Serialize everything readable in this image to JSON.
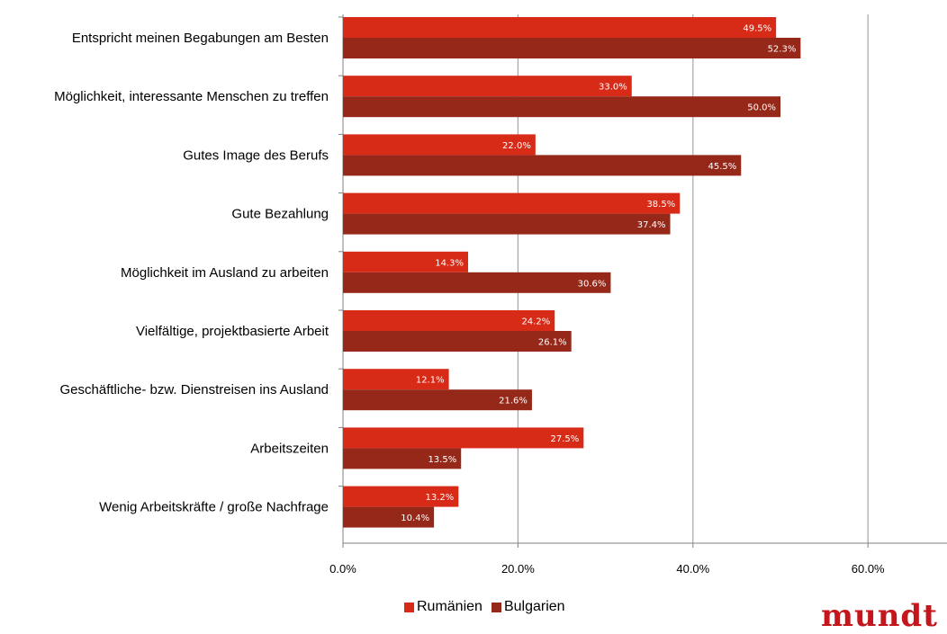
{
  "colors": {
    "series1": "#d72a17",
    "series2": "#962819",
    "grid": "#a6a6a6",
    "axis": "#808080"
  },
  "chart_data": {
    "type": "bar",
    "orientation": "horizontal",
    "categories": [
      "Entspricht meinen Begabungen am Besten",
      "Möglichkeit, interessante Menschen zu treffen",
      "Gutes Image des Berufs",
      "Gute Bezahlung",
      "Möglichkeit im Ausland zu arbeiten",
      "Vielfältige, projektbasierte Arbeit",
      "Geschäftliche- bzw. Dienstreisen ins Ausland",
      "Arbeitszeiten",
      "Wenig Arbeitskräfte / große Nachfrage"
    ],
    "series": [
      {
        "name": "Rumänien",
        "values": [
          49.5,
          33.0,
          22.0,
          38.5,
          14.3,
          24.2,
          12.1,
          27.5,
          13.2
        ],
        "labels": [
          "49.5%",
          "33.0%",
          "22.0%",
          "38.5%",
          "14.3%",
          "24.2%",
          "12.1%",
          "27.5%",
          "13.2%"
        ]
      },
      {
        "name": "Bulgarien",
        "values": [
          52.3,
          50.0,
          45.5,
          37.4,
          30.6,
          26.1,
          21.6,
          13.5,
          10.4
        ],
        "labels": [
          "52.3%",
          "50.0%",
          "45.5%",
          "37.4%",
          "30.6%",
          "26.1%",
          "21.6%",
          "13.5%",
          "10.4%"
        ]
      }
    ],
    "x_ticks": [
      0,
      20,
      40,
      60
    ],
    "x_tick_labels": [
      "0.0%",
      "20.0%",
      "40.0%",
      "60.0%"
    ],
    "xlim": [
      0,
      70
    ],
    "grid": true,
    "legend_position": "bottom-center"
  },
  "legend": {
    "series1": "Rumänien",
    "series2": "Bulgarien"
  },
  "logo_text": "mundt"
}
